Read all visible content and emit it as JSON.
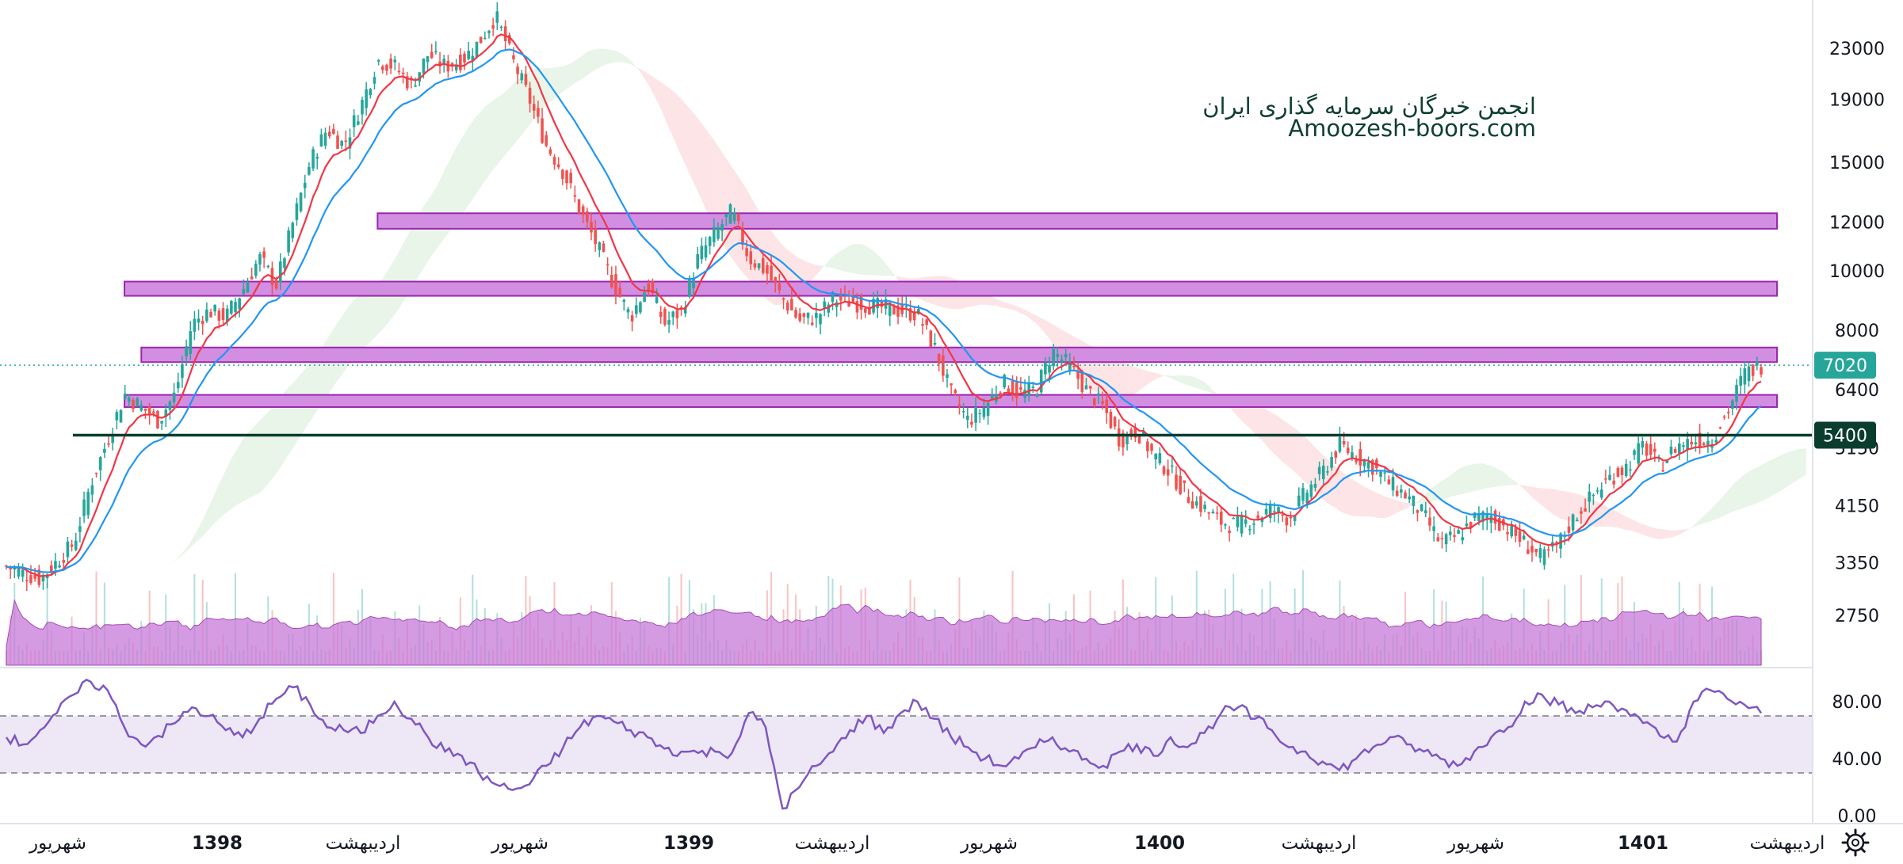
{
  "watermark": {
    "line1": "انجمن خبرگان سرمایه گذاری ایران",
    "line2": "Amoozesh-boors.com"
  },
  "price_tags": [
    {
      "label": "7020",
      "value": 7020,
      "color": "#26a69a"
    },
    {
      "label": "5400",
      "value": 5400,
      "color": "#0b3d2e"
    }
  ],
  "colors": {
    "zone_fill": "#d28ee0",
    "zone_stroke": "#9c27b0",
    "ema_fast": "#f23645",
    "ema_slow": "#2196f3",
    "up": "#26a69a",
    "down": "#ef5350",
    "rsi_line": "#7e57c2",
    "rsi_band": "#ede7f6",
    "volume_ma": "#c77ad8"
  },
  "settings_icon": "gear-icon",
  "chart_data": [
    {
      "type": "candlestick",
      "title": "",
      "xlabel": "",
      "ylabel": "",
      "y_scale": "log",
      "y_ticks": [
        2750,
        3350,
        4150,
        5150,
        6400,
        8000,
        10000,
        12000,
        15000,
        19000,
        23000
      ],
      "y_tick_labels": [
        "2750",
        "3350",
        "4150",
        "5150",
        "6400",
        "8000",
        "10000",
        "12000",
        "15000",
        "19000",
        "23000"
      ],
      "ylim": [
        2300,
        28000
      ],
      "x_ticks": [
        {
          "label": "شهریور",
          "bold": false
        },
        {
          "label": "1398",
          "bold": true
        },
        {
          "label": "اردیبهشت",
          "bold": false
        },
        {
          "label": "شهریور",
          "bold": false
        },
        {
          "label": "1399",
          "bold": true
        },
        {
          "label": "اردیبهشت",
          "bold": false
        },
        {
          "label": "شهریور",
          "bold": false
        },
        {
          "label": "1400",
          "bold": true
        },
        {
          "label": "اردیبهشت",
          "bold": false
        },
        {
          "label": "شهریور",
          "bold": false
        },
        {
          "label": "1401",
          "bold": true
        },
        {
          "label": "اردیبهشت",
          "bold": false
        }
      ],
      "close_series": [
        {
          "t": 0,
          "v": 3300
        },
        {
          "t": 2,
          "v": 3150
        },
        {
          "t": 4,
          "v": 3600
        },
        {
          "t": 5,
          "v": 4500
        },
        {
          "t": 6,
          "v": 5300
        },
        {
          "t": 7,
          "v": 6300
        },
        {
          "t": 8,
          "v": 6000
        },
        {
          "t": 9,
          "v": 5700
        },
        {
          "t": 10,
          "v": 6300
        },
        {
          "t": 11,
          "v": 8200
        },
        {
          "t": 12,
          "v": 8600
        },
        {
          "t": 13,
          "v": 8400
        },
        {
          "t": 14,
          "v": 9300
        },
        {
          "t": 15,
          "v": 10500
        },
        {
          "t": 16,
          "v": 9500
        },
        {
          "t": 17,
          "v": 12000
        },
        {
          "t": 18,
          "v": 15000
        },
        {
          "t": 19,
          "v": 17000
        },
        {
          "t": 20,
          "v": 16000
        },
        {
          "t": 21,
          "v": 18500
        },
        {
          "t": 22,
          "v": 22000
        },
        {
          "t": 23,
          "v": 21500
        },
        {
          "t": 24,
          "v": 20000
        },
        {
          "t": 25,
          "v": 22500
        },
        {
          "t": 26,
          "v": 21500
        },
        {
          "t": 27,
          "v": 22000
        },
        {
          "t": 28,
          "v": 23500
        },
        {
          "t": 29,
          "v": 26000
        },
        {
          "t": 30,
          "v": 22000
        },
        {
          "t": 31,
          "v": 19000
        },
        {
          "t": 32,
          "v": 16000
        },
        {
          "t": 33,
          "v": 14500
        },
        {
          "t": 34,
          "v": 12500
        },
        {
          "t": 35,
          "v": 11000
        },
        {
          "t": 36,
          "v": 9500
        },
        {
          "t": 37,
          "v": 8400
        },
        {
          "t": 38,
          "v": 9500
        },
        {
          "t": 39,
          "v": 8200
        },
        {
          "t": 40,
          "v": 8600
        },
        {
          "t": 41,
          "v": 10500
        },
        {
          "t": 42,
          "v": 11500
        },
        {
          "t": 43,
          "v": 12500
        },
        {
          "t": 44,
          "v": 10500
        },
        {
          "t": 45,
          "v": 10000
        },
        {
          "t": 46,
          "v": 9000
        },
        {
          "t": 47,
          "v": 8300
        },
        {
          "t": 48,
          "v": 8400
        },
        {
          "t": 49,
          "v": 9000
        },
        {
          "t": 50,
          "v": 8900
        },
        {
          "t": 51,
          "v": 8800
        },
        {
          "t": 52,
          "v": 8700
        },
        {
          "t": 53,
          "v": 8600
        },
        {
          "t": 54,
          "v": 8500
        },
        {
          "t": 55,
          "v": 7500
        },
        {
          "t": 56,
          "v": 6300
        },
        {
          "t": 57,
          "v": 5700
        },
        {
          "t": 58,
          "v": 6000
        },
        {
          "t": 59,
          "v": 6600
        },
        {
          "t": 60,
          "v": 6300
        },
        {
          "t": 61,
          "v": 6400
        },
        {
          "t": 62,
          "v": 7400
        },
        {
          "t": 63,
          "v": 7000
        },
        {
          "t": 64,
          "v": 6400
        },
        {
          "t": 65,
          "v": 6000
        },
        {
          "t": 66,
          "v": 5300
        },
        {
          "t": 67,
          "v": 5500
        },
        {
          "t": 68,
          "v": 5000
        },
        {
          "t": 69,
          "v": 4700
        },
        {
          "t": 70,
          "v": 4300
        },
        {
          "t": 71,
          "v": 4100
        },
        {
          "t": 72,
          "v": 3900
        },
        {
          "t": 73,
          "v": 3850
        },
        {
          "t": 74,
          "v": 3950
        },
        {
          "t": 75,
          "v": 4100
        },
        {
          "t": 76,
          "v": 3950
        },
        {
          "t": 77,
          "v": 4350
        },
        {
          "t": 78,
          "v": 4700
        },
        {
          "t": 79,
          "v": 5200
        },
        {
          "t": 80,
          "v": 5000
        },
        {
          "t": 81,
          "v": 4800
        },
        {
          "t": 82,
          "v": 4500
        },
        {
          "t": 83,
          "v": 4300
        },
        {
          "t": 84,
          "v": 4000
        },
        {
          "t": 85,
          "v": 3600
        },
        {
          "t": 86,
          "v": 3700
        },
        {
          "t": 87,
          "v": 3950
        },
        {
          "t": 88,
          "v": 4000
        },
        {
          "t": 89,
          "v": 3800
        },
        {
          "t": 90,
          "v": 3600
        },
        {
          "t": 91,
          "v": 3400
        },
        {
          "t": 92,
          "v": 3600
        },
        {
          "t": 93,
          "v": 4000
        },
        {
          "t": 94,
          "v": 4300
        },
        {
          "t": 95,
          "v": 4600
        },
        {
          "t": 96,
          "v": 4800
        },
        {
          "t": 97,
          "v": 5200
        },
        {
          "t": 98,
          "v": 4800
        },
        {
          "t": 99,
          "v": 5200
        },
        {
          "t": 100,
          "v": 5300
        },
        {
          "t": 101,
          "v": 5300
        },
        {
          "t": 102,
          "v": 5900
        },
        {
          "t": 103,
          "v": 6800
        },
        {
          "t": 104,
          "v": 7020
        }
      ],
      "zones": [
        {
          "low": 11700,
          "high": 12400,
          "from_t": 22,
          "to_t": 104
        },
        {
          "low": 9100,
          "high": 9600,
          "from_t": 7,
          "to_t": 104
        },
        {
          "low": 7100,
          "high": 7500,
          "from_t": 8,
          "to_t": 104
        },
        {
          "low": 6000,
          "high": 6280,
          "from_t": 7,
          "to_t": 104
        }
      ],
      "horizontal_line": 5400,
      "last_price": 7020
    },
    {
      "type": "line",
      "title": "",
      "xlabel": "",
      "ylabel": "",
      "y_ticks": [
        0,
        40,
        80
      ],
      "y_tick_labels": [
        "0.00",
        "40.00",
        "80.00"
      ],
      "ylim": [
        0,
        100
      ],
      "levels": [
        30,
        70
      ],
      "series": [
        {
          "values": [
            55,
            50,
            60,
            72,
            85,
            94,
            88,
            62,
            50,
            56,
            65,
            76,
            70,
            60,
            55,
            68,
            82,
            90,
            78,
            62,
            60,
            58,
            70,
            80,
            68,
            55,
            45,
            42,
            30,
            22,
            18,
            22,
            35,
            48,
            62,
            70,
            66,
            60,
            55,
            47,
            45,
            44,
            45,
            44,
            72,
            62,
            5,
            20,
            35,
            45,
            60,
            70,
            58,
            72,
            80,
            68,
            55,
            48,
            40,
            35,
            40,
            48,
            55,
            45,
            40,
            35,
            45,
            50,
            42,
            55,
            48,
            58,
            72,
            76,
            68,
            60,
            48,
            45,
            38,
            32,
            40,
            48,
            55,
            50,
            45,
            40,
            35,
            45,
            55,
            62,
            80,
            85,
            78,
            72,
            76,
            80,
            74,
            65,
            56,
            52,
            80,
            88,
            82,
            78,
            72
          ]
        }
      ]
    }
  ]
}
